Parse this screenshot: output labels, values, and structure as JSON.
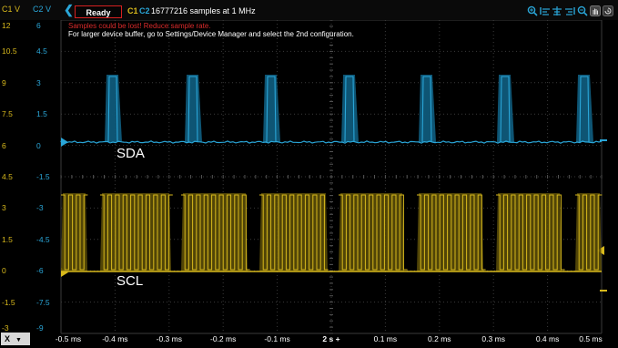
{
  "header": {
    "c1_unit": "C1 V",
    "c2_unit": "C2 V",
    "status": "Ready",
    "ch1": "C1",
    "ch2": "C2",
    "acq_info": "16777216 samples at 1 MHz"
  },
  "warnings": {
    "line1": "Samples could be lost! Reduce sample rate.",
    "line2": "For larger device buffer, go to Settings/Device Manager and select the 2nd configuration."
  },
  "toolbar_icons": [
    "zoom-in-icon",
    "align-left-icon",
    "align-center-icon",
    "align-right-icon",
    "zoom-out-icon",
    "hand-icon",
    "history-icon"
  ],
  "axes": {
    "c1_ticks": [
      "12",
      "10.5",
      "9",
      "7.5",
      "6",
      "4.5",
      "3",
      "1.5",
      "0",
      "-1.5",
      "-3"
    ],
    "c2_ticks": [
      "6",
      "4.5",
      "3",
      "1.5",
      "0",
      "-1.5",
      "-3",
      "-4.5",
      "-6",
      "-7.5",
      "-9"
    ],
    "x_ticks": [
      "-0.5 ms",
      "-0.4 ms",
      "-0.3 ms",
      "-0.2 ms",
      "-0.1 ms",
      "2 s +",
      "0.1 ms",
      "0.2 ms",
      "0.3 ms",
      "0.4 ms",
      "0.5 ms"
    ],
    "x_selector": "X"
  },
  "signals": {
    "sda": "SDA",
    "scl": "SCL"
  },
  "colors": {
    "c1": "#d8b91c",
    "c2": "#2aa6d8",
    "warning": "#d92a2a",
    "grid": "#3a3a3a"
  }
}
